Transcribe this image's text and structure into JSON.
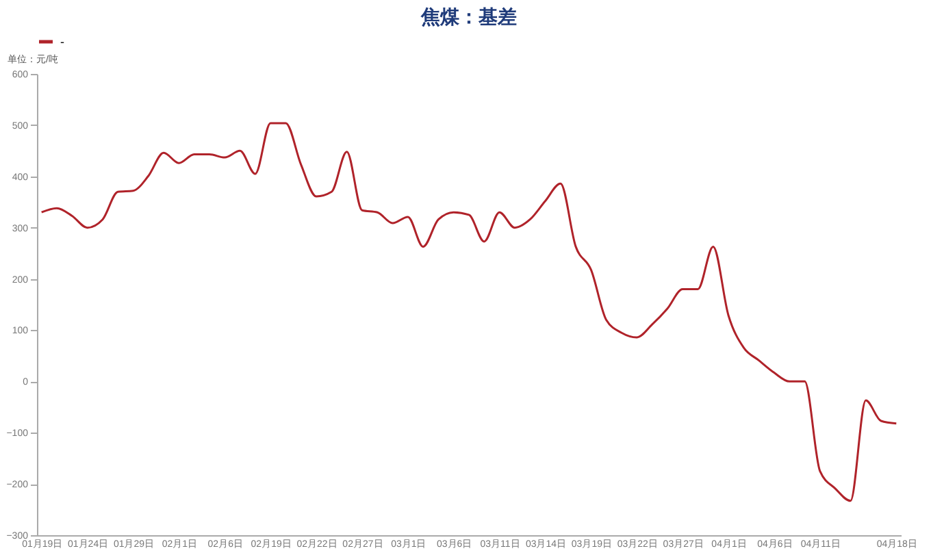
{
  "chart_data": {
    "type": "line",
    "title": "焦煤：基差",
    "ylabel": "单位：元/吨",
    "categories": [
      "01月19日",
      null,
      null,
      "01月24日",
      null,
      null,
      "01月29日",
      null,
      null,
      "02月1日",
      null,
      null,
      "02月6日",
      null,
      null,
      "02月19日",
      null,
      null,
      "02月22日",
      null,
      null,
      "02月27日",
      null,
      null,
      "03月1日",
      null,
      null,
      "03月6日",
      null,
      null,
      "03月11日",
      null,
      null,
      "03月14日",
      null,
      null,
      "03月19日",
      null,
      null,
      "03月22日",
      null,
      null,
      "03月27日",
      null,
      null,
      "04月1日",
      null,
      null,
      "04月6日",
      null,
      null,
      "04月11日",
      null,
      null,
      null,
      null,
      "04月18日"
    ],
    "series": [
      {
        "name": "-",
        "color": "#b0232a",
        "values": [
          330,
          338,
          323,
          300,
          316,
          370,
          372,
          401,
          446,
          426,
          443,
          443,
          437,
          450,
          405,
          504,
          504,
          423,
          361,
          370,
          448,
          334,
          330,
          309,
          321,
          263,
          316,
          330,
          325,
          273,
          330,
          300,
          316,
          352,
          386,
          263,
          218,
          120,
          95,
          86,
          111,
          142,
          180,
          180,
          263,
          129,
          66,
          41,
          17,
          0,
          0,
          -175,
          -209,
          -233,
          -37,
          -77,
          -82
        ]
      }
    ],
    "ylim": [
      -300,
      600
    ],
    "yticks": [
      -300,
      -200,
      -100,
      0,
      100,
      200,
      300,
      400,
      500,
      600
    ],
    "legend": "top",
    "grid": false,
    "marker": "none",
    "line_style": "solid"
  }
}
